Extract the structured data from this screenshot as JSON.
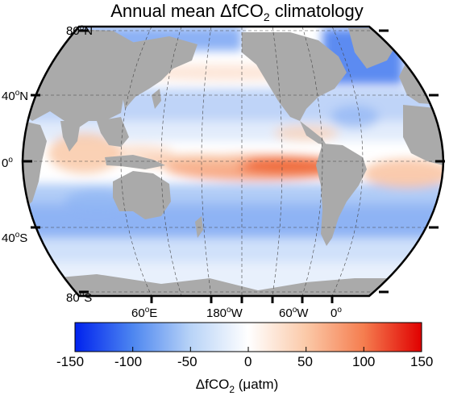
{
  "title": {
    "prefix": "Annual mean ΔfCO",
    "subscript": "2",
    "suffix": " climatology"
  },
  "map": {
    "projection": "Robinson",
    "variable": "ΔfCO2",
    "land_color": "#aaaaaa",
    "ocean_base_color": "#ffffff",
    "lat_labels": [
      {
        "value": "80",
        "sup": "o",
        "hemi": "N"
      },
      {
        "value": "40",
        "sup": "o",
        "hemi": "N"
      },
      {
        "value": "0",
        "sup": "o",
        "hemi": ""
      },
      {
        "value": "40",
        "sup": "o",
        "hemi": "S"
      },
      {
        "value": "80",
        "sup": "o",
        "hemi": "S"
      }
    ],
    "lon_labels": [
      {
        "value": "60",
        "sup": "o",
        "hemi": "E"
      },
      {
        "value": "180",
        "sup": "o",
        "hemi": "W"
      },
      {
        "value": "60",
        "sup": "o",
        "hemi": "W"
      },
      {
        "value": "0",
        "sup": "o",
        "hemi": ""
      }
    ]
  },
  "colorbar": {
    "min": -150,
    "max": 150,
    "ticks": [
      "-150",
      "-100",
      "-50",
      "0",
      "50",
      "100",
      "150"
    ],
    "label_prefix": "ΔfCO",
    "label_sub": "2",
    "label_suffix": " (μatm)",
    "colors": [
      "#0022ee",
      "#4d86f0",
      "#b8d3f7",
      "#ffffff",
      "#fbc9a8",
      "#f57d4f",
      "#e00000"
    ]
  }
}
